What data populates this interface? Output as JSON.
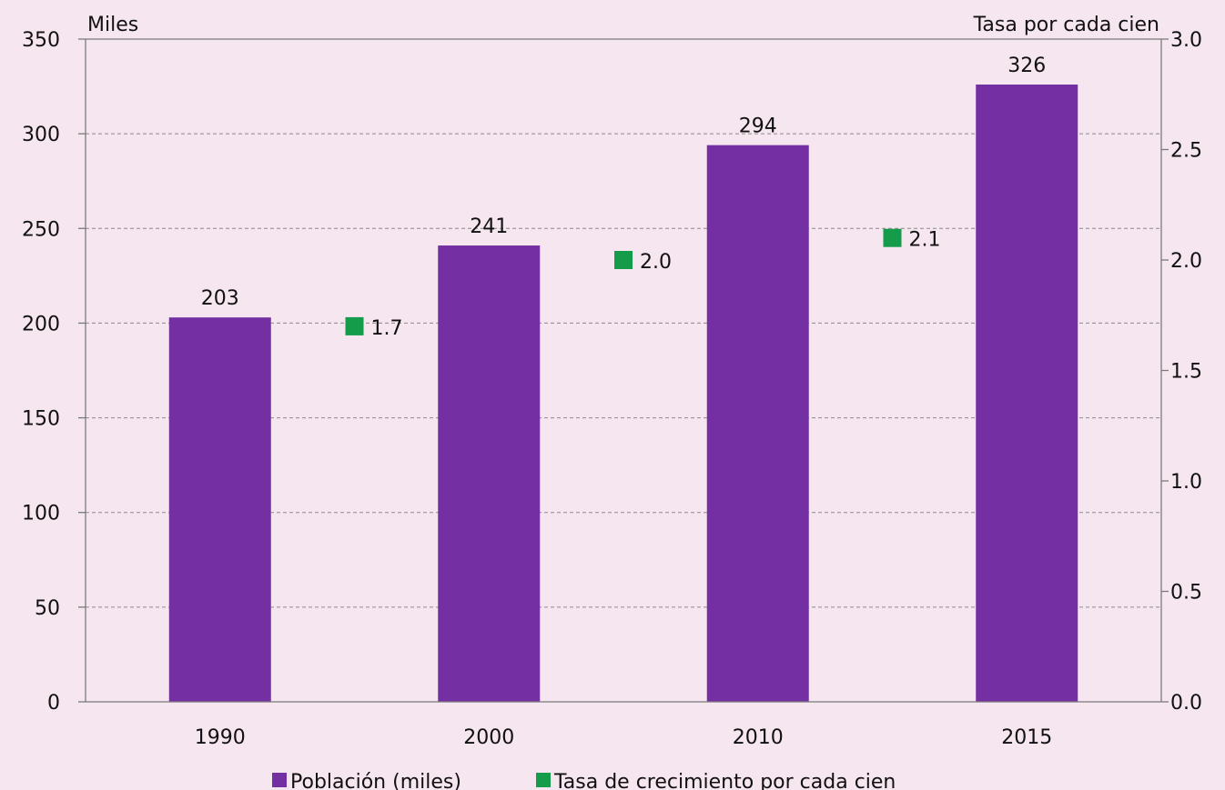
{
  "chart_data": {
    "type": "bar",
    "categories": [
      "1990",
      "2000",
      "2010",
      "2015"
    ],
    "series": [
      {
        "name": "Población (miles)",
        "type": "bar",
        "axis": "left",
        "values": [
          203,
          241,
          294,
          326
        ],
        "labels": [
          "203",
          "241",
          "294",
          "326"
        ]
      },
      {
        "name": "Tasa de crecimiento por cada cien",
        "type": "scatter",
        "axis": "right",
        "positions": [
          "1990-2000",
          "2000-2010",
          "2010-2015"
        ],
        "values": [
          1.7,
          2.0,
          2.1
        ],
        "labels": [
          "1.7",
          "2.0",
          "2.1"
        ]
      }
    ],
    "ylabel_left": "Miles",
    "ylabel_right": "Tasa por cada cien",
    "ylim_left": [
      0,
      350
    ],
    "yticks_left": [
      "0",
      "50",
      "100",
      "150",
      "200",
      "250",
      "300",
      "350"
    ],
    "ylim_right": [
      0,
      3.0
    ],
    "yticks_right": [
      "0.0",
      "0.5",
      "1.0",
      "1.5",
      "2.0",
      "2.5",
      "3.0"
    ],
    "grid": true,
    "legend_position": "bottom",
    "colors": {
      "bar": "#7430a2",
      "marker": "#149c4a",
      "background": "#f6e6f0"
    }
  }
}
